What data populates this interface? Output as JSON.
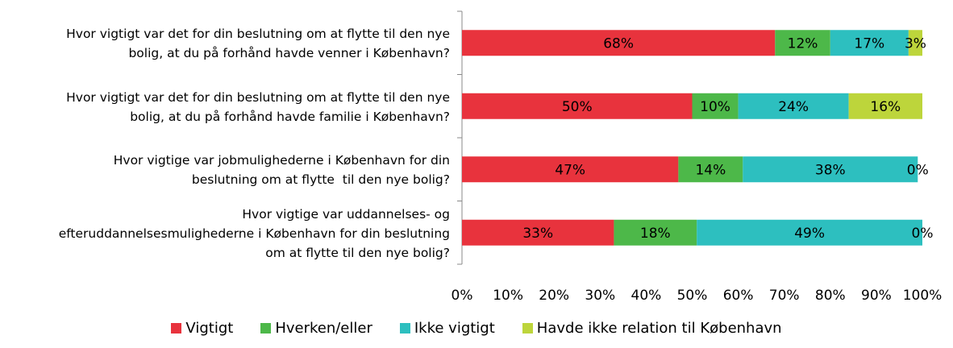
{
  "chart_data": {
    "type": "stacked_barh",
    "categories": [
      "Hvor vigtigt var det for din beslutning om at flytte til den nye\nbolig, at du på forhånd havde venner i København?",
      "Hvor vigtigt var det for din beslutning om at flytte til den nye\nbolig, at du på forhånd havde familie i København?",
      "Hvor vigtige var jobmulighederne i København for din\nbeslutning om at flytte  til den nye bolig?",
      "Hvor vigtige var uddannelses- og\nefteruddannelsesmulighederne i København for din beslutning\nom at flytte til den nye bolig?"
    ],
    "series": [
      {
        "name": "Vigtigt",
        "color": "#e8333d",
        "values": [
          68,
          50,
          47,
          33
        ],
        "value_labels": [
          "68%",
          "50%",
          "47%",
          "33%"
        ]
      },
      {
        "name": "Hverken/eller",
        "color": "#4db849",
        "values": [
          12,
          10,
          14,
          18
        ],
        "value_labels": [
          "12%",
          "10%",
          "14%",
          "18%"
        ]
      },
      {
        "name": "Ikke vigtigt",
        "color": "#2dbfbf",
        "values": [
          17,
          24,
          38,
          49
        ],
        "value_labels": [
          "17%",
          "24%",
          "38%",
          "49%"
        ]
      },
      {
        "name": "Havde ikke relation til København",
        "color": "#bdd53b",
        "values": [
          3,
          16,
          0,
          0
        ],
        "value_labels": [
          "3%",
          "16%",
          "0%",
          "0%"
        ]
      }
    ],
    "xlim": [
      0,
      100
    ],
    "xticks": [
      {
        "value": 0,
        "label": "0%"
      },
      {
        "value": 10,
        "label": "10%"
      },
      {
        "value": 20,
        "label": "20%"
      },
      {
        "value": 30,
        "label": "30%"
      },
      {
        "value": 40,
        "label": "40%"
      },
      {
        "value": 50,
        "label": "50%"
      },
      {
        "value": 60,
        "label": "60%"
      },
      {
        "value": 70,
        "label": "70%"
      },
      {
        "value": 80,
        "label": "80%"
      },
      {
        "value": 90,
        "label": "90%"
      },
      {
        "value": 100,
        "label": "100%"
      }
    ],
    "grid": false,
    "legend": "bottom"
  }
}
